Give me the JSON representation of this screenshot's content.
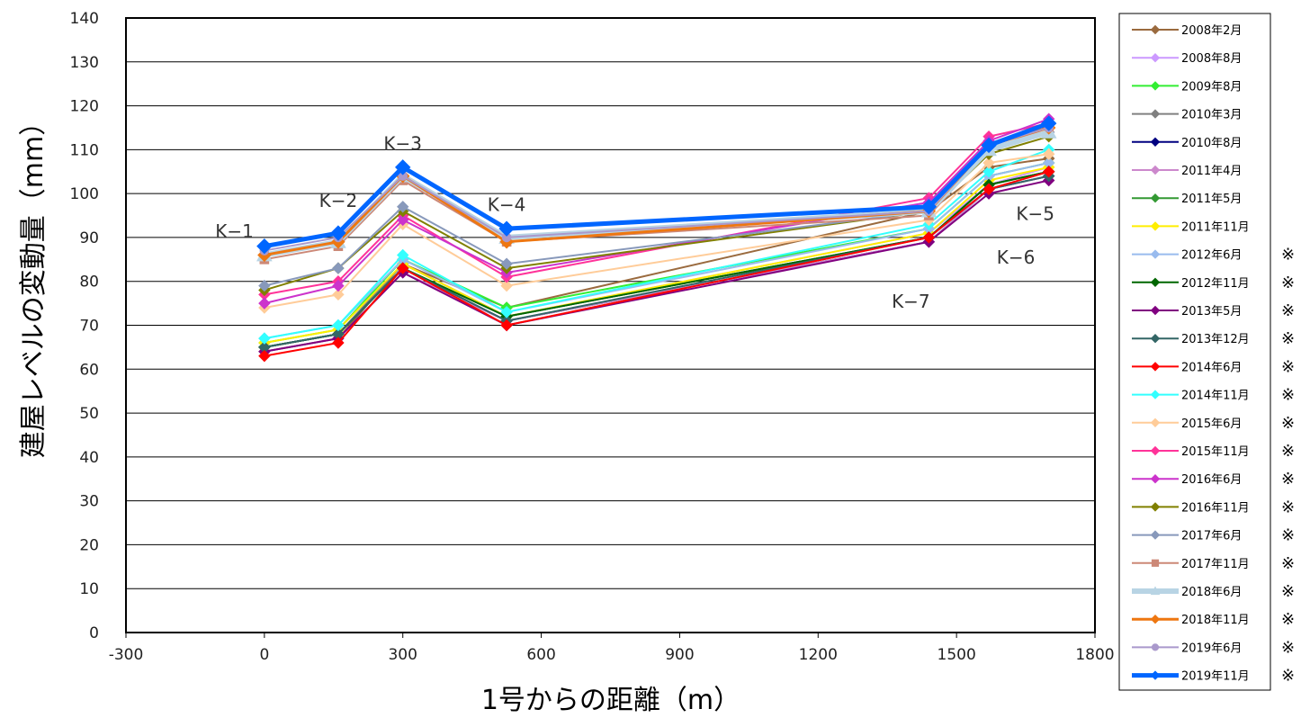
{
  "chart_data": {
    "type": "line",
    "title": "",
    "xlabel": "1号からの距離（m）",
    "ylabel": "建屋レベルの変動量（mm）",
    "xlim": [
      -300,
      1800
    ],
    "ylim": [
      0,
      140
    ],
    "xticks": [
      "-300",
      "0",
      "300",
      "600",
      "900",
      "1200",
      "1500",
      "1800"
    ],
    "yticks": [
      "0",
      "10",
      "20",
      "30",
      "40",
      "50",
      "60",
      "70",
      "80",
      "90",
      "100",
      "110",
      "120",
      "130",
      "140"
    ],
    "grid": "horizontal",
    "legend_position": "right",
    "x": [
      0,
      160,
      300,
      525,
      1440,
      1570,
      1700
    ],
    "point_labels": [
      {
        "text": "K−1",
        "x": 0,
        "y": 90
      },
      {
        "text": "K−2",
        "x": 160,
        "y": 97
      },
      {
        "text": "K−3",
        "x": 300,
        "y": 110
      },
      {
        "text": "K−4",
        "x": 525,
        "y": 96
      },
      {
        "text": "K−7",
        "x": 1440,
        "y": 74
      },
      {
        "text": "K−6",
        "x": 1570,
        "y": 84
      },
      {
        "text": "K−5",
        "x": 1700,
        "y": 94
      }
    ],
    "series": [
      {
        "name": "2008年2月",
        "color": "#9a6a3e",
        "width": 2,
        "marker": "diamond",
        "values": [
          64,
          67,
          84,
          74,
          96,
          106,
          108
        ]
      },
      {
        "name": "2008年8月",
        "color": "#cc99ff",
        "width": 2,
        "marker": "diamond",
        "values": [
          65,
          68,
          84,
          72,
          91,
          102,
          106
        ]
      },
      {
        "name": "2009年8月",
        "color": "#33ee33",
        "width": 2,
        "marker": "diamond",
        "values": [
          66,
          69,
          85,
          74,
          92,
          104,
          107
        ]
      },
      {
        "name": "2010年3月",
        "color": "#808080",
        "width": 2,
        "marker": "diamond",
        "values": [
          65,
          68,
          84,
          72,
          90,
          102,
          105
        ]
      },
      {
        "name": "2010年8月",
        "color": "#000080",
        "width": 2,
        "marker": "diamond",
        "values": [
          65,
          68,
          83,
          71,
          89,
          101,
          104
        ]
      },
      {
        "name": "2011年4月",
        "color": "#cc88cc",
        "width": 2,
        "marker": "diamond",
        "values": [
          64,
          67,
          82,
          71,
          89,
          101,
          104
        ]
      },
      {
        "name": "2011年5月",
        "color": "#339933",
        "width": 2,
        "marker": "diamond",
        "values": [
          65,
          68,
          83,
          72,
          90,
          102,
          105
        ]
      },
      {
        "name": "2011年11月",
        "color": "#ffee00",
        "width": 2,
        "marker": "diamond",
        "values": [
          66,
          69,
          84,
          72,
          91,
          103,
          106
        ]
      },
      {
        "name": "2012年6月",
        "color": "#99bbee",
        "width": 2,
        "marker": "diamond",
        "values": [
          67,
          70,
          85,
          73,
          92,
          104,
          107
        ]
      },
      {
        "name": "2012年11月",
        "color": "#006600",
        "width": 2,
        "marker": "diamond",
        "values": [
          65,
          68,
          83,
          72,
          90,
          102,
          105
        ]
      },
      {
        "name": "2013年5月",
        "color": "#800080",
        "width": 2,
        "marker": "diamond",
        "values": [
          64,
          67,
          82,
          70,
          89,
          100,
          103
        ]
      },
      {
        "name": "2013年12月",
        "color": "#336666",
        "width": 2,
        "marker": "diamond",
        "values": [
          65,
          68,
          83,
          71,
          90,
          101,
          104
        ]
      },
      {
        "name": "2014年6月",
        "color": "#ff0000",
        "width": 2,
        "marker": "diamond",
        "values": [
          63,
          66,
          83,
          70,
          90,
          101,
          105
        ]
      },
      {
        "name": "2014年11月",
        "color": "#33ffff",
        "width": 2,
        "marker": "diamond",
        "values": [
          67,
          70,
          86,
          73,
          93,
          105,
          110
        ]
      },
      {
        "name": "2015年6月",
        "color": "#ffcc99",
        "width": 2,
        "marker": "diamond",
        "values": [
          74,
          77,
          93,
          79,
          94,
          107,
          109
        ]
      },
      {
        "name": "2015年11月",
        "color": "#ff3399",
        "width": 2,
        "marker": "diamond",
        "values": [
          77,
          80,
          95,
          81,
          99,
          113,
          116
        ]
      },
      {
        "name": "2016年6月",
        "color": "#cc33cc",
        "width": 2,
        "marker": "diamond",
        "values": [
          75,
          79,
          94,
          82,
          98,
          112,
          117
        ]
      },
      {
        "name": "2016年11月",
        "color": "#808000",
        "width": 2,
        "marker": "diamond",
        "values": [
          78,
          83,
          96,
          83,
          96,
          109,
          113
        ]
      },
      {
        "name": "2017年6月",
        "color": "#8899bb",
        "width": 2,
        "marker": "diamond",
        "values": [
          79,
          83,
          97,
          84,
          96,
          110,
          114
        ]
      },
      {
        "name": "2017年11月",
        "color": "#cc8877",
        "width": 2,
        "marker": "square",
        "values": [
          85,
          88,
          103,
          89,
          95,
          110,
          115
        ]
      },
      {
        "name": "2018年6月",
        "color": "#b8d4e4",
        "width": 6,
        "marker": "triangle",
        "values": [
          86,
          89,
          104,
          90,
          96,
          110,
          114
        ]
      },
      {
        "name": "2018年11月",
        "color": "#ee7711",
        "width": 3,
        "marker": "diamond",
        "values": [
          86,
          89,
          104,
          89,
          96,
          111,
          115
        ]
      },
      {
        "name": "2019年6月",
        "color": "#aa99cc",
        "width": 2,
        "marker": "circle",
        "values": [
          87,
          90,
          104,
          90,
          96,
          111,
          115
        ]
      },
      {
        "name": "2019年11月",
        "color": "#0066ff",
        "width": 5,
        "marker": "diamond",
        "values": [
          88,
          91,
          106,
          92,
          97,
          111,
          116
        ]
      }
    ],
    "legend_asterisk": "※",
    "legend_asterisk_from_index": 8
  }
}
